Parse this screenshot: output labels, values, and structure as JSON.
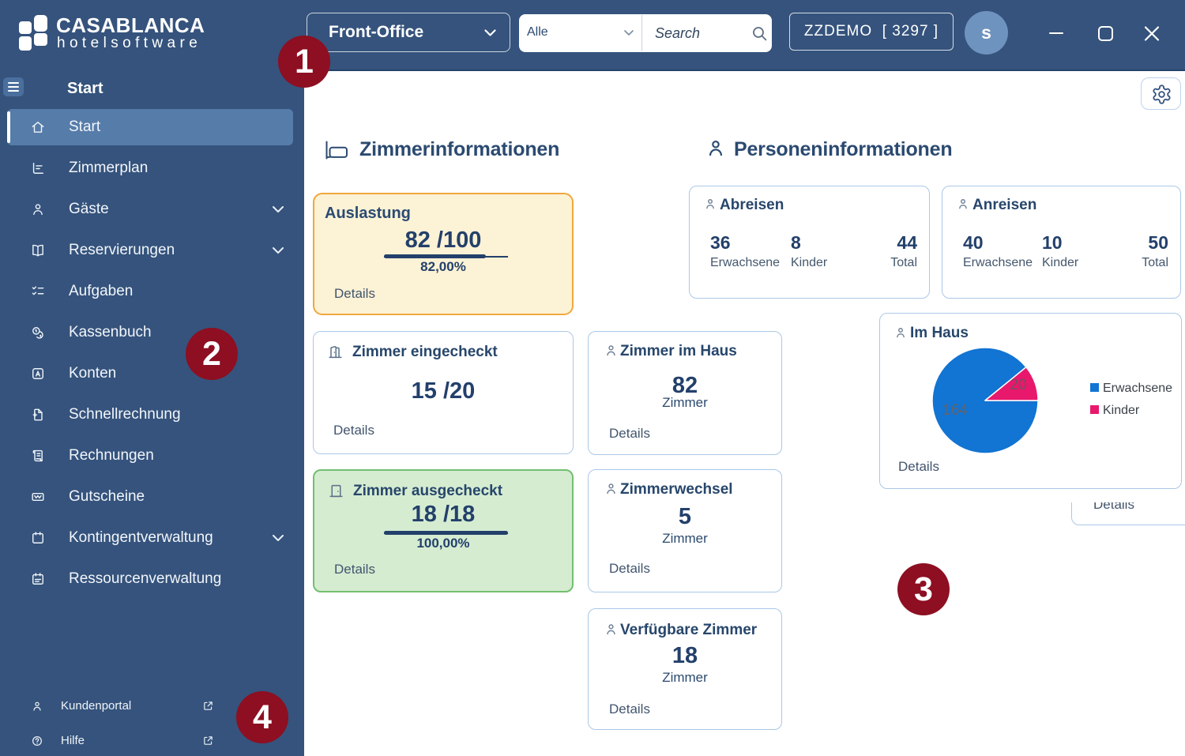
{
  "colors": {
    "header_bg": "#35537C",
    "sidebar_selected": "#567CA9",
    "annotation_red": "#8D0F21",
    "card_border": "#ABC8E8",
    "navy_text": "#23406B",
    "occupancy_bg": "#FCF2D5",
    "occupancy_border": "#F0A73E",
    "checked_out_bg": "#D5ECD1",
    "checked_out_border": "#73BF70",
    "pie_blue": "#1274D3",
    "pie_pink": "#E8186D"
  },
  "header": {
    "brand_name": "CASABLANCA",
    "brand_sub": "hotelsoftware",
    "module_select": "Front-Office",
    "filter_select": "Alle",
    "search_placeholder": "Search",
    "hotel_code": "ZZDEMO  [ 3297 ]",
    "avatar_initial": "s"
  },
  "sidebar": {
    "heading": "Start",
    "items": [
      {
        "label": "Start",
        "active": true
      },
      {
        "label": "Zimmerplan"
      },
      {
        "label": "Gäste",
        "expandable": true
      },
      {
        "label": "Reservierungen",
        "expandable": true
      },
      {
        "label": "Aufgaben"
      },
      {
        "label": "Kassenbuch"
      },
      {
        "label": "Konten"
      },
      {
        "label": "Schnellrechnung"
      },
      {
        "label": "Rechnungen"
      },
      {
        "label": "Gutscheine"
      },
      {
        "label": "Kontingentverwaltung",
        "expandable": true
      },
      {
        "label": "Ressourcenverwaltung"
      }
    ],
    "footer": [
      {
        "label": "Kundenportal",
        "external": true
      },
      {
        "label": "Hilfe",
        "external": true
      }
    ]
  },
  "main": {
    "rooms": {
      "title": "Zimmerinformationen",
      "occupancy": {
        "title": "Auslastung",
        "value": "82 /100",
        "percent": 82,
        "percent_label": "82,00%",
        "details": "Details"
      },
      "checked_in": {
        "title": "Zimmer eingecheckt",
        "value": "15 /20",
        "details": "Details"
      },
      "checked_out": {
        "title": "Zimmer ausgecheckt",
        "value": "18 /18",
        "percent": 100,
        "percent_label": "100,00%",
        "details": "Details"
      },
      "rooms_in_house": {
        "title": "Zimmer im Haus",
        "value": "82",
        "unit": "Zimmer",
        "details": "Details"
      },
      "room_change": {
        "title": "Zimmerwechsel",
        "value": "5",
        "unit": "Zimmer",
        "details": "Details"
      },
      "available": {
        "title": "Verfügbare Zimmer",
        "value": "18",
        "unit": "Zimmer",
        "details": "Details"
      }
    },
    "persons": {
      "title": "Personeninformationen",
      "departures": {
        "title": "Abreisen",
        "stats": [
          {
            "value": "36",
            "label": "Erwachsene"
          },
          {
            "value": "8",
            "label": "Kinder"
          },
          {
            "value": "44",
            "label": "Total"
          }
        ]
      },
      "arrivals": {
        "title": "Anreisen",
        "stats": [
          {
            "value": "40",
            "label": "Erwachsene"
          },
          {
            "value": "10",
            "label": "Kinder"
          },
          {
            "value": "50",
            "label": "Total"
          }
        ]
      },
      "in_house": {
        "title": "Im Haus",
        "details": "Details",
        "chart_data": {
          "type": "pie",
          "series": [
            {
              "name": "Erwachsene",
              "value": 164,
              "color": "#1274D3"
            },
            {
              "name": "Kinder",
              "value": 20,
              "color": "#E8186D"
            }
          ],
          "labels": [
            "164",
            "20"
          ],
          "legend_position": "right"
        }
      },
      "partial_card": {
        "details": "Details"
      }
    }
  },
  "annotations": [
    {
      "number": "1"
    },
    {
      "number": "2"
    },
    {
      "number": "3"
    },
    {
      "number": "4"
    }
  ]
}
